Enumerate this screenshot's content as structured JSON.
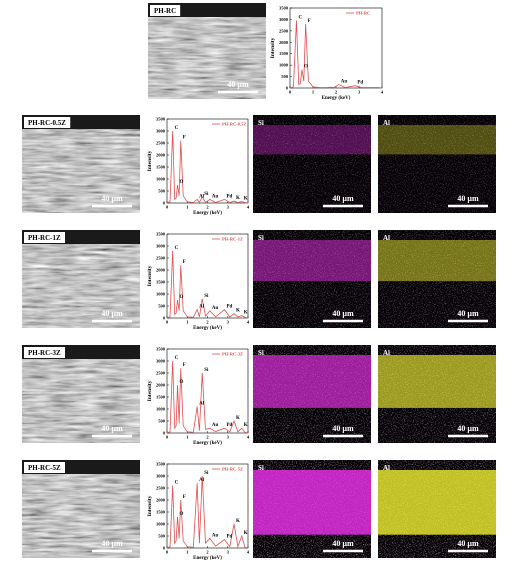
{
  "chart_data": [
    {
      "type": "line",
      "x_label": "Energy (keV)",
      "y_label": "Intensity",
      "x": [
        0,
        0.15,
        0.28,
        0.38,
        0.45,
        0.52,
        0.6,
        0.68,
        0.8,
        1.0,
        1.3,
        1.49,
        1.6,
        1.74,
        1.9,
        2.12,
        2.4,
        2.84,
        3.1,
        3.31,
        3.5,
        3.69,
        3.85,
        4.0
      ],
      "series": [
        {
          "name": "PH-RC",
          "color": "#e05050",
          "values": [
            0,
            50,
            2950,
            150,
            200,
            800,
            300,
            2800,
            300,
            50,
            20,
            20,
            20,
            30,
            20,
            150,
            20,
            100,
            20,
            20,
            20,
            20,
            20,
            0
          ]
        }
      ],
      "xlim": [
        0,
        4
      ],
      "xticks": [
        0,
        1,
        2,
        3,
        4
      ],
      "ylim": [
        0,
        3500
      ],
      "yticks": [
        0,
        500,
        1000,
        1500,
        2000,
        2500,
        3000,
        3500
      ],
      "annotations": [
        {
          "text": "C",
          "x": 0.28,
          "y": 2950
        },
        {
          "text": "O",
          "x": 0.52,
          "y": 800
        },
        {
          "text": "F",
          "x": 0.68,
          "y": 2800
        },
        {
          "text": "Au",
          "x": 2.12,
          "y": 150
        },
        {
          "text": "Pd",
          "x": 2.84,
          "y": 100
        }
      ]
    },
    {
      "type": "line",
      "x_label": "Energy (keV)",
      "y_label": "Intensity",
      "x": [
        0,
        0.15,
        0.28,
        0.38,
        0.45,
        0.52,
        0.6,
        0.68,
        0.8,
        1.0,
        1.3,
        1.49,
        1.6,
        1.74,
        1.9,
        2.12,
        2.4,
        2.84,
        3.1,
        3.31,
        3.5,
        3.69,
        3.85,
        4.0
      ],
      "series": [
        {
          "name": "PH-RC-0.5Z",
          "color": "#e05050",
          "values": [
            0,
            50,
            3000,
            150,
            200,
            750,
            300,
            2600,
            300,
            50,
            20,
            150,
            30,
            250,
            30,
            150,
            20,
            150,
            20,
            80,
            20,
            60,
            20,
            0
          ]
        }
      ],
      "xlim": [
        0,
        4
      ],
      "xticks": [
        0,
        1,
        2,
        3,
        4
      ],
      "ylim": [
        0,
        3500
      ],
      "yticks": [
        0,
        500,
        1000,
        1500,
        2000,
        2500,
        3000,
        3500
      ],
      "annotations": [
        {
          "text": "C",
          "x": 0.28,
          "y": 3000
        },
        {
          "text": "O",
          "x": 0.52,
          "y": 750
        },
        {
          "text": "F",
          "x": 0.68,
          "y": 2600
        },
        {
          "text": "Al",
          "x": 1.49,
          "y": 150
        },
        {
          "text": "Si",
          "x": 1.74,
          "y": 250
        },
        {
          "text": "Au",
          "x": 2.12,
          "y": 150
        },
        {
          "text": "Pd",
          "x": 2.84,
          "y": 150
        },
        {
          "text": "K",
          "x": 3.31,
          "y": 80
        },
        {
          "text": "K",
          "x": 3.69,
          "y": 60
        }
      ]
    },
    {
      "type": "line",
      "x_label": "Energy (keV)",
      "y_label": "Intensity",
      "x": [
        0,
        0.15,
        0.28,
        0.38,
        0.45,
        0.52,
        0.6,
        0.68,
        0.8,
        1.0,
        1.3,
        1.49,
        1.6,
        1.74,
        1.9,
        2.12,
        2.4,
        2.84,
        3.1,
        3.31,
        3.5,
        3.69,
        3.85,
        4.0
      ],
      "series": [
        {
          "name": "PH-RC-1Z",
          "color": "#e05050",
          "values": [
            0,
            50,
            2800,
            150,
            200,
            750,
            300,
            2200,
            300,
            50,
            30,
            350,
            50,
            800,
            80,
            300,
            50,
            350,
            40,
            180,
            40,
            100,
            30,
            0
          ]
        }
      ],
      "xlim": [
        0,
        4
      ],
      "xticks": [
        0,
        1,
        2,
        3,
        4
      ],
      "ylim": [
        0,
        3500
      ],
      "yticks": [
        0,
        500,
        1000,
        1500,
        2000,
        2500,
        3000,
        3500
      ],
      "annotations": [
        {
          "text": "C",
          "x": 0.28,
          "y": 2800
        },
        {
          "text": "O",
          "x": 0.52,
          "y": 750
        },
        {
          "text": "F",
          "x": 0.68,
          "y": 2200
        },
        {
          "text": "Al",
          "x": 1.49,
          "y": 350
        },
        {
          "text": "Si",
          "x": 1.74,
          "y": 800
        },
        {
          "text": "Au",
          "x": 2.12,
          "y": 300
        },
        {
          "text": "Pd",
          "x": 2.84,
          "y": 350
        },
        {
          "text": "K",
          "x": 3.31,
          "y": 180
        },
        {
          "text": "K",
          "x": 3.69,
          "y": 100
        }
      ]
    },
    {
      "type": "line",
      "x_label": "Energy (keV)",
      "y_label": "Intensity",
      "x": [
        0,
        0.15,
        0.28,
        0.38,
        0.45,
        0.52,
        0.6,
        0.68,
        0.8,
        1.0,
        1.3,
        1.49,
        1.6,
        1.74,
        1.9,
        2.12,
        2.4,
        2.84,
        3.1,
        3.31,
        3.5,
        3.69,
        3.85,
        4.0
      ],
      "series": [
        {
          "name": "PH-RC-3Z",
          "color": "#e05050",
          "values": [
            0,
            50,
            3000,
            200,
            300,
            2000,
            400,
            2700,
            300,
            50,
            30,
            1100,
            100,
            2500,
            150,
            200,
            60,
            200,
            50,
            500,
            50,
            200,
            30,
            0
          ]
        }
      ],
      "xlim": [
        0,
        4
      ],
      "xticks": [
        0,
        1,
        2,
        3,
        4
      ],
      "ylim": [
        0,
        3500
      ],
      "yticks": [
        0,
        500,
        1000,
        1500,
        2000,
        2500,
        3000,
        3500
      ],
      "annotations": [
        {
          "text": "C",
          "x": 0.28,
          "y": 3000
        },
        {
          "text": "O",
          "x": 0.52,
          "y": 2000
        },
        {
          "text": "F",
          "x": 0.68,
          "y": 2700
        },
        {
          "text": "Al",
          "x": 1.49,
          "y": 1100
        },
        {
          "text": "Si",
          "x": 1.74,
          "y": 2500
        },
        {
          "text": "Au",
          "x": 2.12,
          "y": 200
        },
        {
          "text": "Pd",
          "x": 2.84,
          "y": 200
        },
        {
          "text": "K",
          "x": 3.31,
          "y": 500
        },
        {
          "text": "K",
          "x": 3.69,
          "y": 200
        }
      ]
    },
    {
      "type": "line",
      "x_label": "Energy (keV)",
      "y_label": "Intensity",
      "x": [
        0,
        0.15,
        0.28,
        0.38,
        0.45,
        0.52,
        0.6,
        0.68,
        0.8,
        1.0,
        1.3,
        1.49,
        1.6,
        1.74,
        1.9,
        2.12,
        2.4,
        2.84,
        3.1,
        3.31,
        3.5,
        3.69,
        3.85,
        4.0
      ],
      "series": [
        {
          "name": "PH-RC-5Z",
          "color": "#e05050",
          "values": [
            0,
            50,
            2600,
            200,
            300,
            1300,
            400,
            2000,
            300,
            50,
            30,
            2700,
            200,
            3000,
            200,
            400,
            80,
            350,
            60,
            1000,
            60,
            500,
            30,
            0
          ]
        }
      ],
      "xlim": [
        0,
        4
      ],
      "xticks": [
        0,
        1,
        2,
        3,
        4
      ],
      "ylim": [
        0,
        3500
      ],
      "yticks": [
        0,
        500,
        1000,
        1500,
        2000,
        2500,
        3000,
        3500
      ],
      "annotations": [
        {
          "text": "C",
          "x": 0.28,
          "y": 2600
        },
        {
          "text": "O",
          "x": 0.52,
          "y": 1300
        },
        {
          "text": "F",
          "x": 0.68,
          "y": 2000
        },
        {
          "text": "Al",
          "x": 1.49,
          "y": 2700
        },
        {
          "text": "Si",
          "x": 1.74,
          "y": 3000
        },
        {
          "text": "Au",
          "x": 2.12,
          "y": 400
        },
        {
          "text": "Pd",
          "x": 2.84,
          "y": 350
        },
        {
          "text": "K",
          "x": 3.31,
          "y": 1000
        },
        {
          "text": "K",
          "x": 3.69,
          "y": 500
        }
      ]
    }
  ],
  "rows": [
    {
      "label": "PH-RC",
      "scale": "40 µm"
    },
    {
      "label": "PH-RC-0.5Z",
      "scale": "40 µm",
      "si": "Si",
      "si_scale": "40 µm",
      "al": "Al",
      "al_scale": "40 µm"
    },
    {
      "label": "PH-RC-1Z",
      "scale": "40 µm",
      "si": "Si",
      "si_scale": "40 µm",
      "al": "Al",
      "al_scale": "40 µm"
    },
    {
      "label": "PH-RC-3Z",
      "scale": "40 µm",
      "si": "Si",
      "si_scale": "40 µm",
      "al": "Al",
      "al_scale": "40 µm"
    },
    {
      "label": "PH-RC-5Z",
      "scale": "40 µm",
      "si": "Si",
      "si_scale": "40 µm",
      "al": "Al",
      "al_scale": "40 µm"
    }
  ]
}
